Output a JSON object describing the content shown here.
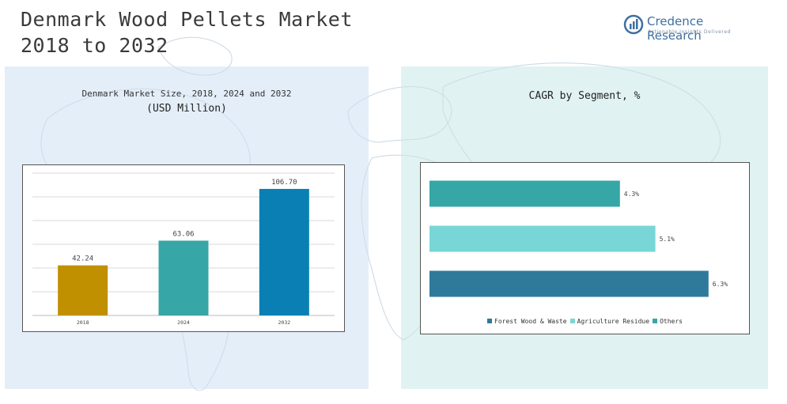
{
  "header": {
    "title_line1": "Denmark Wood Pellets Market",
    "title_line2": "2018 to 2032"
  },
  "logo": {
    "icon": "credence-research-logo-icon",
    "name": "Credence Research",
    "tagline": "Actionable Insights Delivered"
  },
  "left_panel": {
    "title": "Denmark Market Size, 2018, 2024 and 2032",
    "subtitle": "(USD Million)"
  },
  "right_panel": {
    "title": "CAGR by Segment, %"
  },
  "colors": {
    "bar_2018": "#c09000",
    "bar_2024": "#36a6a6",
    "bar_2032": "#0a7fb4",
    "forest": "#2f7a9a",
    "agriculture": "#78d6d6",
    "others": "#36a6a6"
  },
  "chart_data": [
    {
      "type": "bar",
      "title": "Denmark Market Size, 2018, 2024 and 2032",
      "subtitle": "(USD Million)",
      "categories": [
        "2018",
        "2024",
        "2032"
      ],
      "values": [
        42.24,
        63.06,
        106.7
      ],
      "value_labels": [
        "42.24",
        "63.06",
        "106.70"
      ],
      "ylim": [
        0,
        120
      ],
      "grid": true,
      "colors": [
        "#c09000",
        "#36a6a6",
        "#0a7fb4"
      ]
    },
    {
      "type": "bar",
      "orientation": "horizontal",
      "title": "CAGR by Segment, %",
      "categories": [
        "Others",
        "Agriculture Residue",
        "Forest Wood & Waste"
      ],
      "values": [
        4.3,
        5.1,
        6.3
      ],
      "value_labels": [
        "4.3%",
        "5.1%",
        "6.3%"
      ],
      "xlim": [
        0,
        6.5
      ],
      "grid": false,
      "colors": [
        "#36a6a6",
        "#78d6d6",
        "#2f7a9a"
      ],
      "legend": {
        "placement": "bottom",
        "entries": [
          {
            "label": "Forest Wood & Waste",
            "color": "#2f7a9a"
          },
          {
            "label": "Agriculture Residue",
            "color": "#78d6d6"
          },
          {
            "label": "Others",
            "color": "#36a6a6"
          }
        ]
      }
    }
  ]
}
